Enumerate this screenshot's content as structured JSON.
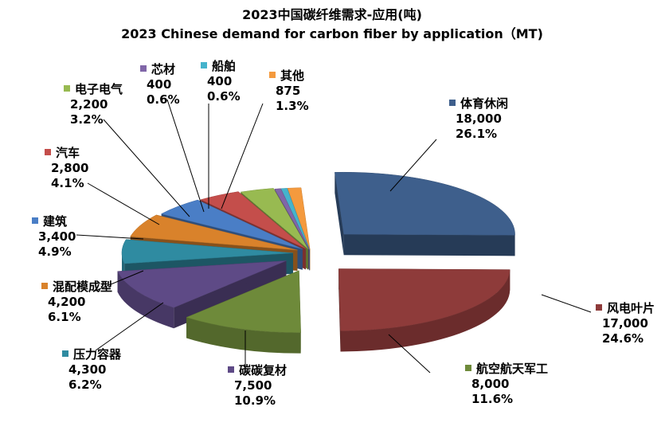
{
  "chart_data": {
    "type": "pie",
    "title": "2023中国碳纤维需求-应用(吨)",
    "subtitle": "2023 Chinese demand for carbon fiber by application（MT)",
    "slices": [
      {
        "name": "体育休闲",
        "value": 18000,
        "value_label": "18,000",
        "percent_label": "26.1%",
        "color": "#3E5F8C"
      },
      {
        "name": "风电叶片",
        "value": 17000,
        "value_label": "17,000",
        "percent_label": "24.6%",
        "color": "#8E3B3A"
      },
      {
        "name": "航空航天军工",
        "value": 8000,
        "value_label": "8,000",
        "percent_label": "11.6%",
        "color": "#6E8A3A"
      },
      {
        "name": "碳碳复材",
        "value": 7500,
        "value_label": "7,500",
        "percent_label": "10.9%",
        "color": "#5E4A86"
      },
      {
        "name": "压力容器",
        "value": 4300,
        "value_label": "4,300",
        "percent_label": "6.2%",
        "color": "#2F8BA1"
      },
      {
        "name": "混配模成型",
        "value": 4200,
        "value_label": "4,200",
        "percent_label": "6.1%",
        "color": "#D9822B"
      },
      {
        "name": "建筑",
        "value": 3400,
        "value_label": "3,400",
        "percent_label": "4.9%",
        "color": "#4A7EC6"
      },
      {
        "name": "汽车",
        "value": 2800,
        "value_label": "2,800",
        "percent_label": "4.1%",
        "color": "#C44E4B"
      },
      {
        "name": "电子电气",
        "value": 2200,
        "value_label": "2,200",
        "percent_label": "3.2%",
        "color": "#98BA51"
      },
      {
        "name": "芯材",
        "value": 400,
        "value_label": "400",
        "percent_label": "0.6%",
        "color": "#8066A8"
      },
      {
        "name": "船舶",
        "value": 400,
        "value_label": "400",
        "percent_label": "0.6%",
        "color": "#45B3CC"
      },
      {
        "name": "其他",
        "value": 875,
        "value_label": "875",
        "percent_label": "1.3%",
        "color": "#F49A3E"
      }
    ]
  }
}
